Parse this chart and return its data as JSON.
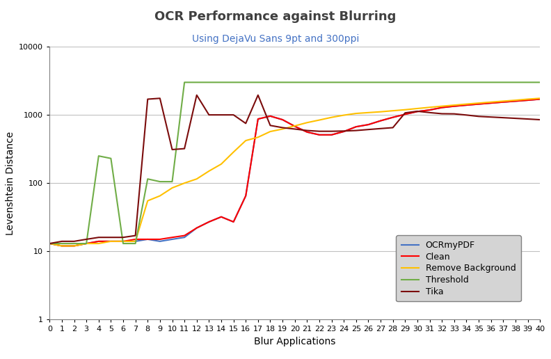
{
  "title": "OCR Performance against Blurring",
  "subtitle": "Using DejaVu Sans 9pt and 300ppi",
  "xlabel": "Blur Applications",
  "ylabel": "Levenshtein Distance",
  "x": [
    0,
    1,
    2,
    3,
    4,
    5,
    6,
    7,
    8,
    9,
    10,
    11,
    12,
    13,
    14,
    15,
    16,
    17,
    18,
    19,
    20,
    21,
    22,
    23,
    24,
    25,
    26,
    27,
    28,
    29,
    30,
    31,
    32,
    33,
    34,
    35,
    36,
    37,
    38,
    39,
    40
  ],
  "OCRmyPDF": [
    13,
    12,
    12,
    13,
    14,
    14,
    14,
    14,
    15,
    14,
    15,
    16,
    22,
    27,
    32,
    27,
    65,
    870,
    960,
    850,
    680,
    560,
    510,
    510,
    570,
    670,
    720,
    820,
    920,
    1020,
    1120,
    1180,
    1280,
    1340,
    1390,
    1440,
    1490,
    1540,
    1590,
    1640,
    1700
  ],
  "Clean": [
    13,
    12,
    12,
    13,
    14,
    14,
    14,
    15,
    15,
    15,
    16,
    17,
    22,
    27,
    32,
    27,
    65,
    870,
    960,
    850,
    680,
    560,
    510,
    510,
    570,
    670,
    720,
    820,
    920,
    1020,
    1120,
    1180,
    1280,
    1340,
    1390,
    1440,
    1490,
    1540,
    1590,
    1640,
    1700
  ],
  "RemoveBackground": [
    13,
    12,
    12,
    13,
    13,
    14,
    14,
    14,
    55,
    65,
    85,
    100,
    115,
    150,
    190,
    285,
    420,
    470,
    570,
    620,
    690,
    770,
    840,
    920,
    990,
    1050,
    1080,
    1110,
    1150,
    1190,
    1240,
    1290,
    1340,
    1390,
    1440,
    1490,
    1540,
    1590,
    1640,
    1700,
    1750
  ],
  "Threshold": [
    13,
    13,
    13,
    13,
    250,
    230,
    13,
    13,
    115,
    105,
    105,
    3000,
    3000,
    3000,
    3000,
    3000,
    3000,
    3000,
    3000,
    3000,
    3000,
    3000,
    3000,
    3000,
    3000,
    3000,
    3000,
    3000,
    3000,
    3000,
    3000,
    3000,
    3000,
    3000,
    3000,
    3000,
    3000,
    3000,
    3000,
    3000,
    3000
  ],
  "Tika": [
    13,
    14,
    14,
    15,
    16,
    16,
    16,
    17,
    1700,
    1750,
    310,
    320,
    1950,
    1000,
    1000,
    1000,
    750,
    1950,
    700,
    650,
    620,
    590,
    575,
    575,
    580,
    590,
    610,
    630,
    650,
    1070,
    1130,
    1080,
    1040,
    1035,
    995,
    950,
    930,
    910,
    890,
    870,
    850
  ],
  "colors": {
    "OCRmyPDF": "#4472c4",
    "Clean": "#ff0000",
    "RemoveBackground": "#ffc000",
    "Threshold": "#70ad47",
    "Tika": "#7b0c0c"
  },
  "ylim": [
    1,
    10000
  ],
  "xlim": [
    0,
    40
  ],
  "title_color": "#404040",
  "subtitle_color": "#4472c4",
  "legend_facecolor": "#d4d4d4",
  "grid_color": "#c0c0c0"
}
